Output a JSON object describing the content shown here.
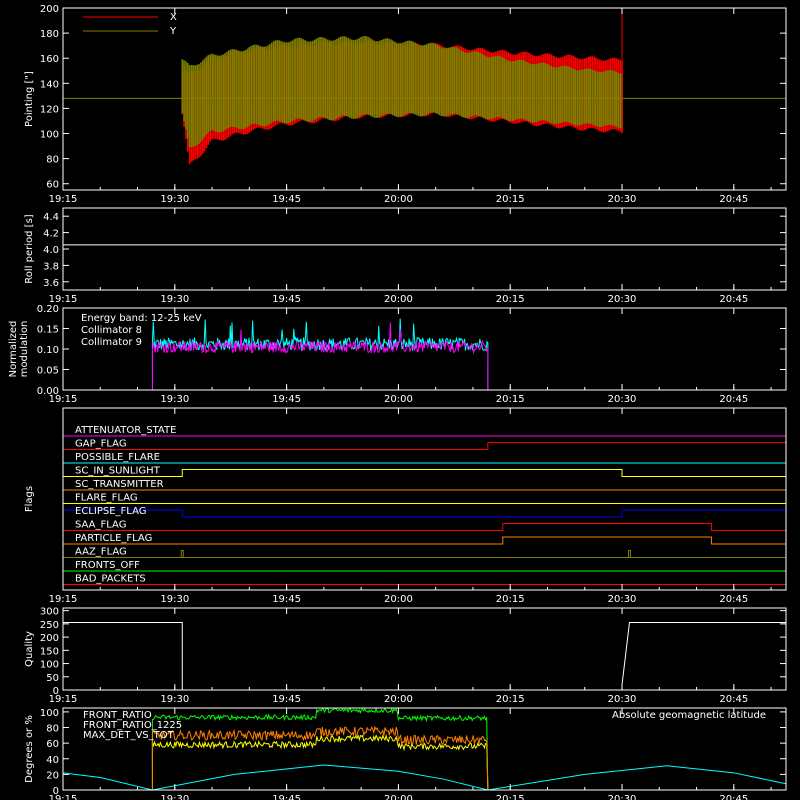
{
  "chart_data": [
    {
      "id": "pointing",
      "type": "line",
      "ylabel": "Pointing [\"]",
      "ylim": [
        55,
        200
      ],
      "yticks": [
        "60",
        "80",
        "100",
        "120",
        "140",
        "160",
        "180",
        "200"
      ],
      "legend": "top-left",
      "series": [
        {
          "name": "X",
          "color": "#ff0000",
          "start": "19:31",
          "end": "20:30",
          "envelope": [
            {
              "t": "19:31",
              "lo": 115,
              "hi": 155
            },
            {
              "t": "19:32",
              "lo": 72,
              "hi": 148
            },
            {
              "t": "19:35",
              "lo": 92,
              "hi": 162
            },
            {
              "t": "19:40",
              "lo": 100,
              "hi": 168
            },
            {
              "t": "19:45",
              "lo": 106,
              "hi": 172
            },
            {
              "t": "19:55",
              "lo": 112,
              "hi": 174
            },
            {
              "t": "20:05",
              "lo": 114,
              "hi": 172
            },
            {
              "t": "20:15",
              "lo": 108,
              "hi": 166
            },
            {
              "t": "20:25",
              "lo": 102,
              "hi": 162
            },
            {
              "t": "20:30",
              "lo": 100,
              "hi": 160
            }
          ]
        },
        {
          "name": "Y",
          "color": "#808000",
          "constant": 128,
          "envelope": [
            {
              "t": "19:31",
              "lo": 115,
              "hi": 160
            },
            {
              "t": "19:32",
              "lo": 86,
              "hi": 155
            },
            {
              "t": "19:35",
              "lo": 100,
              "hi": 164
            },
            {
              "t": "19:45",
              "lo": 108,
              "hi": 176
            },
            {
              "t": "19:55",
              "lo": 112,
              "hi": 178
            },
            {
              "t": "20:05",
              "lo": 114,
              "hi": 172
            },
            {
              "t": "20:15",
              "lo": 110,
              "hi": 160
            },
            {
              "t": "20:25",
              "lo": 106,
              "hi": 152
            },
            {
              "t": "20:30",
              "lo": 104,
              "hi": 150
            }
          ]
        }
      ]
    },
    {
      "id": "roll",
      "type": "line",
      "ylabel": "Roll period [s]",
      "ylim": [
        3.5,
        4.5
      ],
      "yticks": [
        "3.6",
        "3.8",
        "4.0",
        "4.2",
        "4.4"
      ],
      "series": [
        {
          "name": "",
          "color": "#ffffff",
          "constant": 4.05
        }
      ]
    },
    {
      "id": "modulation",
      "type": "line",
      "ylabel": [
        "Normalized",
        "modulation"
      ],
      "ylim": [
        0,
        0.2
      ],
      "yticks": [
        "0.00",
        "0.05",
        "0.10",
        "0.15",
        "0.20"
      ],
      "annotation": "Energy band: 12-25 keV",
      "legend": "top-left",
      "active": [
        "19:27",
        "20:12"
      ],
      "series": [
        {
          "name": "Collimator 8",
          "color": "#00ffff",
          "mean": 0.112,
          "spread": 0.016
        },
        {
          "name": "Collimator 9",
          "color": "#ff00ff",
          "mean": 0.105,
          "spread": 0.014
        }
      ]
    },
    {
      "id": "flags",
      "type": "line",
      "ylabel": "Flags",
      "flags": [
        {
          "name": "ATTENUATOR_STATE",
          "color": "#ff00ff",
          "segments": [
            [
              "19:15",
              "20:52",
              0
            ]
          ]
        },
        {
          "name": "GAP_FLAG",
          "color": "#ff0000",
          "segments": [
            [
              "19:15",
              "20:12",
              0
            ],
            [
              "20:12",
              "20:52",
              1
            ]
          ]
        },
        {
          "name": "POSSIBLE_FLARE",
          "color": "#00ffff",
          "segments": [
            [
              "19:15",
              "20:52",
              0
            ]
          ]
        },
        {
          "name": "SC_IN_SUNLIGHT",
          "color": "#ffff00",
          "segments": [
            [
              "19:15",
              "19:31",
              0
            ],
            [
              "19:31",
              "20:30",
              1
            ],
            [
              "20:30",
              "20:52",
              0
            ]
          ]
        },
        {
          "name": "SC_TRANSMITTER",
          "color": "#ff8000",
          "segments": [
            [
              "19:15",
              "20:52",
              0
            ]
          ]
        },
        {
          "name": "FLARE_FLAG",
          "color": "#ffff00",
          "segments": [
            [
              "19:15",
              "20:52",
              0
            ]
          ]
        },
        {
          "name": "ECLIPSE_FLAG",
          "color": "#0000ff",
          "segments": [
            [
              "19:15",
              "19:31",
              1
            ],
            [
              "19:31",
              "20:30",
              0
            ],
            [
              "20:30",
              "20:52",
              1
            ]
          ]
        },
        {
          "name": "SAA_FLAG",
          "color": "#ff0000",
          "segments": [
            [
              "19:15",
              "20:14",
              0
            ],
            [
              "20:14",
              "20:42",
              1
            ],
            [
              "20:42",
              "20:52",
              0
            ]
          ]
        },
        {
          "name": "PARTICLE_FLAG",
          "color": "#ff8000",
          "segments": [
            [
              "19:15",
              "20:12",
              0
            ],
            [
              "20:12",
              "20:14",
              0
            ],
            [
              "20:14",
              "20:42",
              1
            ],
            [
              "20:42",
              "20:52",
              0
            ]
          ]
        },
        {
          "name": "AAZ_FLAG",
          "color": "#808000",
          "segments": [
            [
              "19:15",
              "20:52",
              0
            ]
          ],
          "spikes": [
            "19:31",
            "20:31"
          ]
        },
        {
          "name": "FRONTS_OFF",
          "color": "#00ff00",
          "segments": [
            [
              "19:15",
              "20:52",
              0
            ]
          ]
        },
        {
          "name": "BAD_PACKETS",
          "color": "#ff0000",
          "segments": [
            [
              "19:15",
              "20:52",
              0
            ]
          ]
        }
      ]
    },
    {
      "id": "quality",
      "type": "line",
      "ylabel": "Quality",
      "ylim": [
        0,
        310
      ],
      "yticks": [
        "0",
        "50",
        "100",
        "150",
        "200",
        "250",
        "300"
      ],
      "series": [
        {
          "name": "",
          "color": "#ffffff",
          "points": [
            [
              "19:15",
              255
            ],
            [
              "19:31",
              255
            ],
            [
              "19:31",
              0
            ],
            [
              "20:30",
              0
            ],
            [
              "20:30",
              20
            ],
            [
              "20:31",
              255
            ],
            [
              "20:52",
              255
            ]
          ]
        }
      ]
    },
    {
      "id": "ratios",
      "type": "line",
      "ylabel": "Degrees or %",
      "ylim": [
        0,
        105
      ],
      "yticks": [
        "0",
        "20",
        "40",
        "60",
        "80",
        "100"
      ],
      "legend": "top-left",
      "latitude_label": "Absolute geomagnetic latitude",
      "latitude_color": "#00ffff",
      "latitude": [
        {
          "t": "19:15",
          "v": 22
        },
        {
          "t": "19:20",
          "v": 16
        },
        {
          "t": "19:27",
          "v": 0
        },
        {
          "t": "19:38",
          "v": 20
        },
        {
          "t": "19:50",
          "v": 32
        },
        {
          "t": "20:00",
          "v": 24
        },
        {
          "t": "20:06",
          "v": 14
        },
        {
          "t": "20:12",
          "v": 0
        },
        {
          "t": "20:25",
          "v": 20
        },
        {
          "t": "20:36",
          "v": 31
        },
        {
          "t": "20:45",
          "v": 22
        },
        {
          "t": "20:52",
          "v": 8
        }
      ],
      "active": [
        "19:27",
        "20:12"
      ],
      "series": [
        {
          "name": "FRONT_RATIO",
          "color": "#ffff00",
          "levels": [
            [
              "19:27",
              "19:49",
              58
            ],
            [
              "19:49",
              "20:00",
              66
            ],
            [
              "20:00",
              "20:12",
              56
            ]
          ],
          "spread": 4
        },
        {
          "name": "FRONT_RATIO_1225",
          "color": "#00ff00",
          "levels": [
            [
              "19:27",
              "19:49",
              93
            ],
            [
              "19:49",
              "20:00",
              102
            ],
            [
              "20:00",
              "20:12",
              92
            ]
          ],
          "spread": 3
        },
        {
          "name": "MAX_DET_VS_TOT",
          "color": "#ff8000",
          "levels": [
            [
              "19:27",
              "19:49",
              70
            ],
            [
              "19:49",
              "20:00",
              75
            ],
            [
              "20:00",
              "20:12",
              64
            ]
          ],
          "spread": 6
        }
      ]
    }
  ],
  "x_axis": {
    "range": [
      "19:15",
      "20:52"
    ],
    "ticks": [
      "19:15",
      "19:30",
      "19:45",
      "20:00",
      "20:15",
      "20:30",
      "20:45"
    ]
  }
}
